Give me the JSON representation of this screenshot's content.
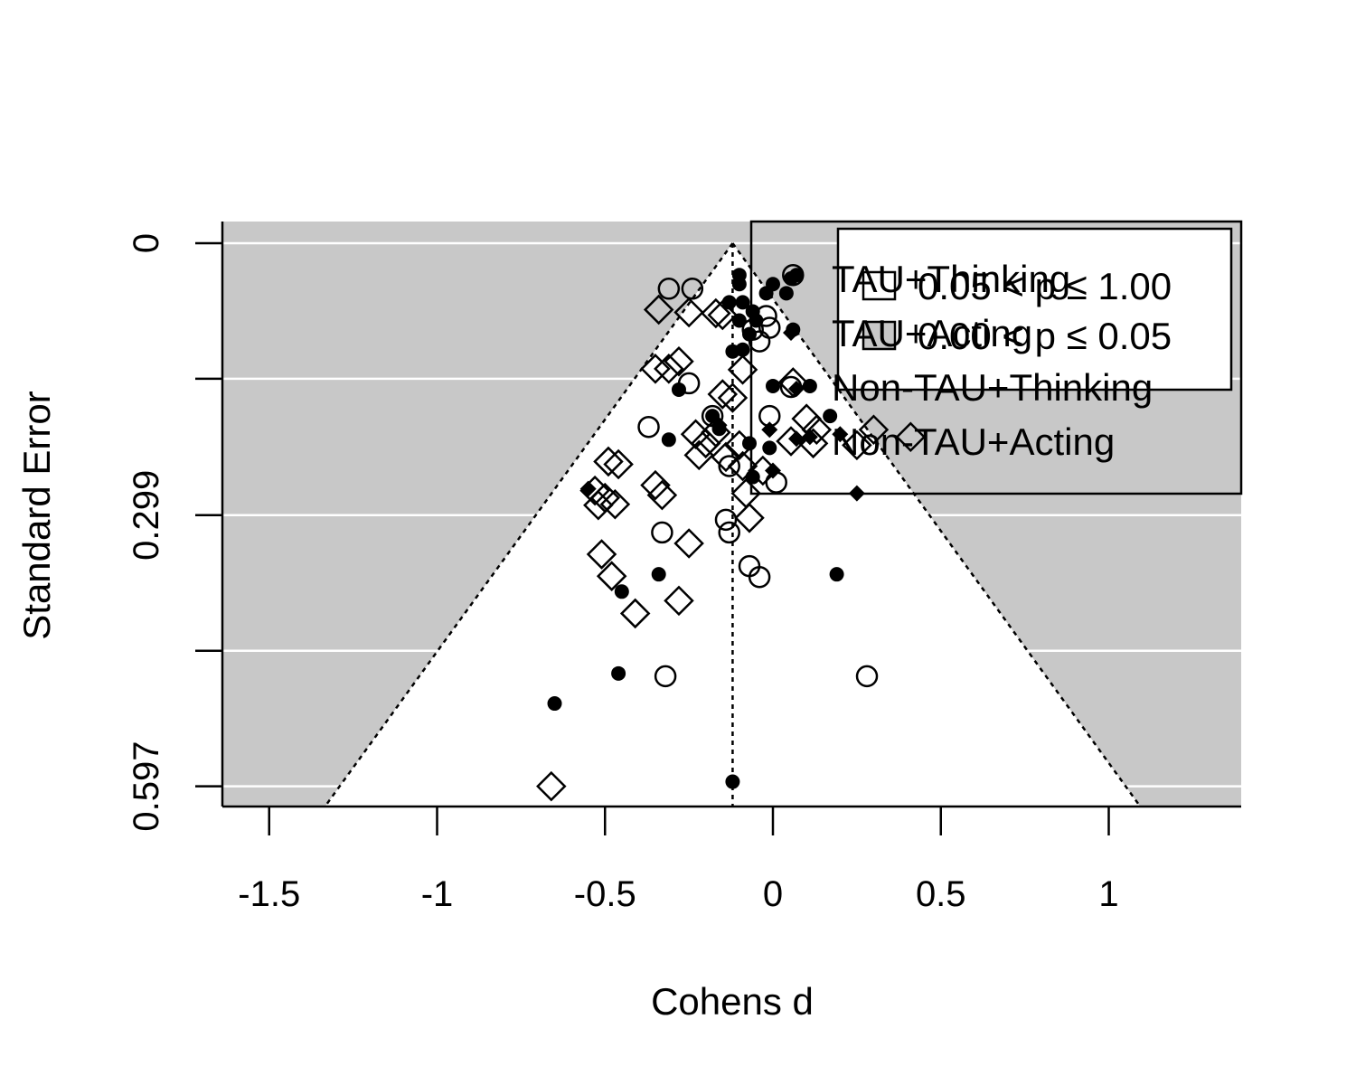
{
  "chart_data": {
    "type": "scatter",
    "title": "",
    "xlabel": "Cohens d",
    "ylabel": "Standard Error",
    "xlim": [
      -1.64,
      1.4
    ],
    "ylim": [
      0,
      0.62
    ],
    "y_reversed": true,
    "x_ticks": [
      -1.5,
      -1,
      -0.5,
      0,
      0.5,
      1
    ],
    "x_tick_labels": [
      "-1.5",
      "-1",
      "-0.5",
      "0",
      "0.5",
      "1"
    ],
    "y_ticks": [
      0,
      0.149,
      0.299,
      0.448,
      0.597
    ],
    "y_tick_labels": [
      "0",
      "",
      "0.299",
      "",
      "0.597"
    ],
    "funnel_center": -0.12,
    "funnel_z": 1.96,
    "background_color": "#c8c8c8",
    "funnel_interior_color": "#ffffff",
    "grid": true,
    "grid_color": "#ffffff",
    "legend_placement": "top-right",
    "legends": [
      {
        "entries": [
          {
            "label": "0.05 < p ≤ 1.00",
            "swatch_color": "#ffffff"
          },
          {
            "label": "0.00 < p ≤ 0.05",
            "swatch_color": "#c8c8c8"
          }
        ]
      },
      {
        "entries": [
          {
            "label": "TAU+Thinking",
            "marker": "filled-circle"
          },
          {
            "label": "TAU+Acting",
            "marker": "filled-diamond"
          },
          {
            "label": "Non-TAU+Thinking",
            "marker": "open-circle"
          },
          {
            "label": "Non-TAU+Acting",
            "marker": "open-diamond"
          }
        ]
      }
    ],
    "series": [
      {
        "name": "TAU+Thinking",
        "marker": "filled-circle",
        "points": [
          {
            "x": -0.1,
            "y": 0.035
          },
          {
            "x": 0.07,
            "y": 0.035
          },
          {
            "x": -0.1,
            "y": 0.045
          },
          {
            "x": 0.0,
            "y": 0.045
          },
          {
            "x": -0.02,
            "y": 0.055
          },
          {
            "x": 0.04,
            "y": 0.055
          },
          {
            "x": -0.13,
            "y": 0.065
          },
          {
            "x": -0.09,
            "y": 0.065
          },
          {
            "x": -0.06,
            "y": 0.075
          },
          {
            "x": -0.1,
            "y": 0.085
          },
          {
            "x": -0.05,
            "y": 0.085
          },
          {
            "x": 0.06,
            "y": 0.095
          },
          {
            "x": -0.07,
            "y": 0.1
          },
          {
            "x": -0.09,
            "y": 0.117
          },
          {
            "x": -0.12,
            "y": 0.119
          },
          {
            "x": 0.0,
            "y": 0.157
          },
          {
            "x": 0.11,
            "y": 0.157
          },
          {
            "x": -0.28,
            "y": 0.161
          },
          {
            "x": -0.18,
            "y": 0.19
          },
          {
            "x": 0.17,
            "y": 0.19
          },
          {
            "x": -0.16,
            "y": 0.204
          },
          {
            "x": -0.31,
            "y": 0.216
          },
          {
            "x": -0.07,
            "y": 0.22
          },
          {
            "x": -0.01,
            "y": 0.225
          },
          {
            "x": -0.06,
            "y": 0.257
          },
          {
            "x": -0.34,
            "y": 0.364
          },
          {
            "x": 0.19,
            "y": 0.364
          },
          {
            "x": -0.45,
            "y": 0.383
          },
          {
            "x": -0.46,
            "y": 0.473
          },
          {
            "x": -0.65,
            "y": 0.506
          },
          {
            "x": -0.12,
            "y": 0.592
          }
        ]
      },
      {
        "name": "TAU+Acting",
        "marker": "filled-diamond",
        "points": [
          {
            "x": 0.07,
            "y": 0.16
          },
          {
            "x": -0.01,
            "y": 0.205
          },
          {
            "x": 0.07,
            "y": 0.215
          },
          {
            "x": 0.11,
            "y": 0.213
          },
          {
            "x": -0.16,
            "y": 0.2
          },
          {
            "x": 0.0,
            "y": 0.25
          },
          {
            "x": 0.2,
            "y": 0.21
          },
          {
            "x": -0.55,
            "y": 0.27
          },
          {
            "x": 0.25,
            "y": 0.275
          }
        ]
      },
      {
        "name": "Non-TAU+Thinking",
        "marker": "open-circle",
        "points": [
          {
            "x": -0.31,
            "y": 0.05
          },
          {
            "x": -0.24,
            "y": 0.05
          },
          {
            "x": 0.06,
            "y": 0.035
          },
          {
            "x": -0.02,
            "y": 0.08
          },
          {
            "x": -0.01,
            "y": 0.093
          },
          {
            "x": -0.06,
            "y": 0.095
          },
          {
            "x": -0.04,
            "y": 0.108
          },
          {
            "x": -0.25,
            "y": 0.154
          },
          {
            "x": -0.18,
            "y": 0.19
          },
          {
            "x": -0.01,
            "y": 0.19
          },
          {
            "x": -0.37,
            "y": 0.202
          },
          {
            "x": -0.13,
            "y": 0.245
          },
          {
            "x": 0.01,
            "y": 0.263
          },
          {
            "x": -0.14,
            "y": 0.304
          },
          {
            "x": -0.33,
            "y": 0.318
          },
          {
            "x": -0.13,
            "y": 0.318
          },
          {
            "x": -0.07,
            "y": 0.355
          },
          {
            "x": -0.04,
            "y": 0.367
          },
          {
            "x": -0.32,
            "y": 0.476
          },
          {
            "x": 0.28,
            "y": 0.476
          }
        ]
      },
      {
        "name": "Non-TAU+Acting",
        "marker": "open-diamond",
        "points": [
          {
            "x": -0.34,
            "y": 0.073
          },
          {
            "x": -0.25,
            "y": 0.076
          },
          {
            "x": -0.17,
            "y": 0.077
          },
          {
            "x": -0.15,
            "y": 0.079
          },
          {
            "x": -0.35,
            "y": 0.138
          },
          {
            "x": -0.31,
            "y": 0.138
          },
          {
            "x": -0.28,
            "y": 0.13
          },
          {
            "x": -0.09,
            "y": 0.139
          },
          {
            "x": -0.15,
            "y": 0.166
          },
          {
            "x": -0.12,
            "y": 0.17
          },
          {
            "x": 0.06,
            "y": 0.153
          },
          {
            "x": 0.1,
            "y": 0.193
          },
          {
            "x": 0.13,
            "y": 0.205
          },
          {
            "x": 0.3,
            "y": 0.205
          },
          {
            "x": 0.41,
            "y": 0.213
          },
          {
            "x": -0.17,
            "y": 0.208
          },
          {
            "x": -0.23,
            "y": 0.21
          },
          {
            "x": -0.2,
            "y": 0.22
          },
          {
            "x": -0.22,
            "y": 0.233
          },
          {
            "x": -0.14,
            "y": 0.235
          },
          {
            "x": -0.1,
            "y": 0.222
          },
          {
            "x": 0.12,
            "y": 0.22
          },
          {
            "x": 0.25,
            "y": 0.222
          },
          {
            "x": -0.49,
            "y": 0.24
          },
          {
            "x": -0.46,
            "y": 0.243
          },
          {
            "x": -0.35,
            "y": 0.266
          },
          {
            "x": -0.33,
            "y": 0.277
          },
          {
            "x": -0.53,
            "y": 0.272
          },
          {
            "x": -0.5,
            "y": 0.28
          },
          {
            "x": -0.47,
            "y": 0.287
          },
          {
            "x": -0.08,
            "y": 0.275
          },
          {
            "x": -0.52,
            "y": 0.288
          },
          {
            "x": -0.07,
            "y": 0.302
          },
          {
            "x": -0.25,
            "y": 0.33
          },
          {
            "x": -0.51,
            "y": 0.342
          },
          {
            "x": -0.48,
            "y": 0.366
          },
          {
            "x": -0.28,
            "y": 0.393
          },
          {
            "x": -0.41,
            "y": 0.407
          },
          {
            "x": -0.66,
            "y": 0.597
          },
          {
            "x": -0.09,
            "y": 0.245
          },
          {
            "x": -0.03,
            "y": 0.25
          }
        ]
      }
    ]
  }
}
